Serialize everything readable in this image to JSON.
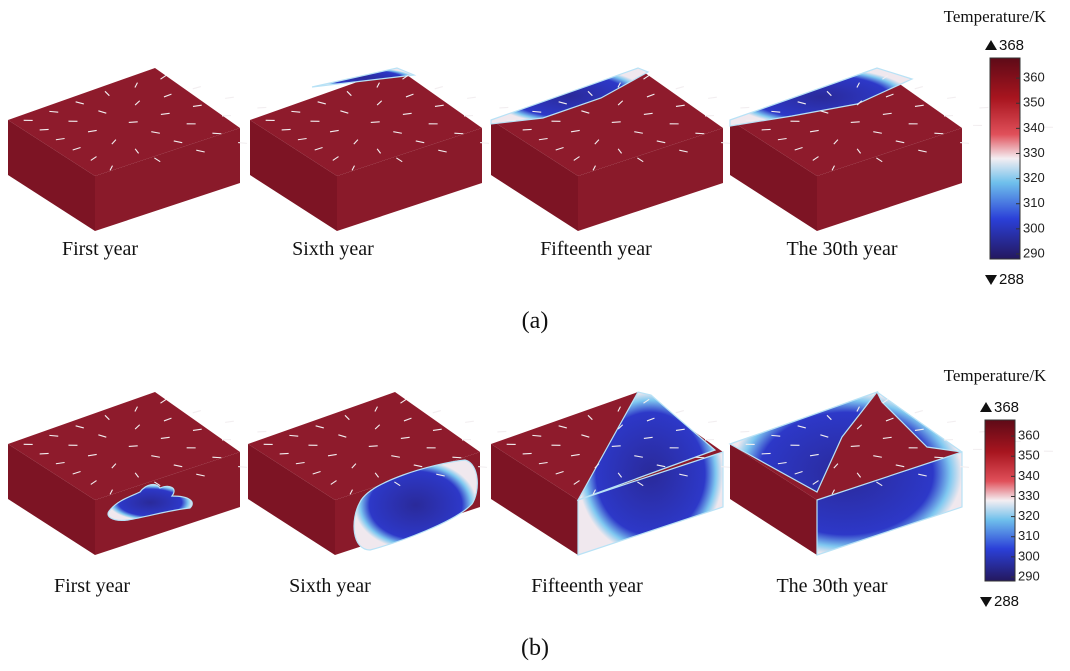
{
  "panels": [
    {
      "label": "(a)",
      "frames": [
        "First year",
        "Sixth year",
        "Fifteenth year",
        "The 30th year"
      ],
      "colorbar": {
        "title": "Temperature/K",
        "max": 368,
        "min": 288,
        "ticks": [
          360,
          350,
          340,
          330,
          320,
          310,
          300,
          290
        ]
      }
    },
    {
      "label": "(b)",
      "frames": [
        "First year",
        "Sixth year",
        "Fifteenth year",
        "The 30th year"
      ],
      "colorbar": {
        "title": "Temperature/K",
        "max": 368,
        "min": 288,
        "ticks": [
          360,
          350,
          340,
          330,
          320,
          310,
          300,
          290
        ]
      }
    }
  ]
}
